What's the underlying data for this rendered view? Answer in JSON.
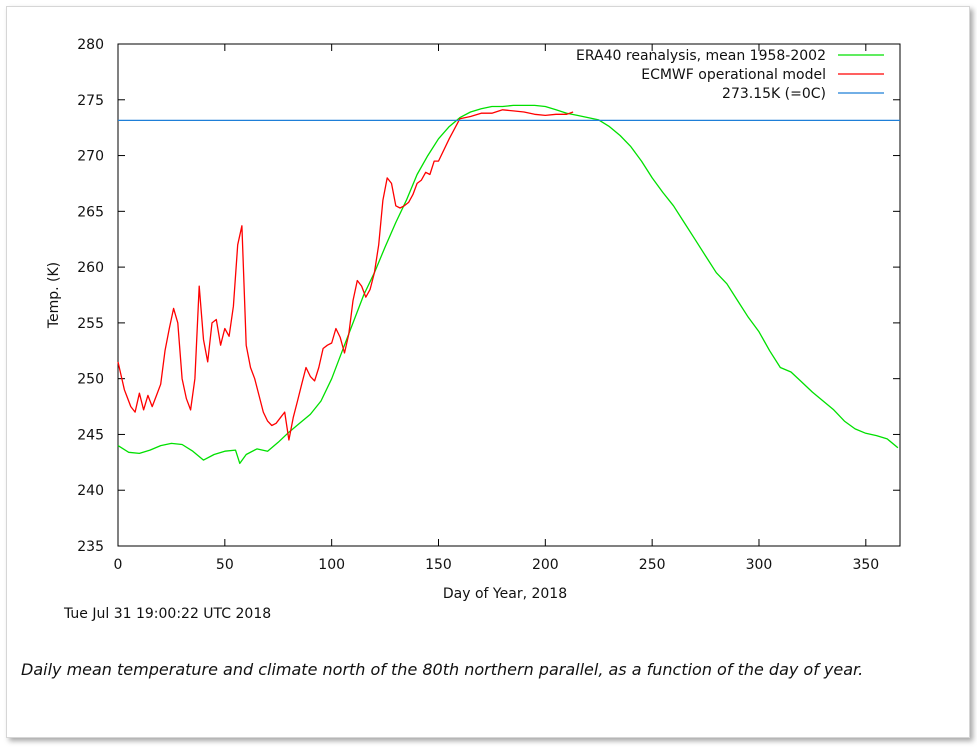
{
  "caption": "Daily mean temperature and climate north of the 80th northern parallel, as a function of the day of year.",
  "timestamp": "Tue Jul 31 19:00:22 UTC 2018",
  "chart_data": {
    "type": "line",
    "xlabel": "Day of Year, 2018",
    "ylabel": "Temp. (K)",
    "xlim": [
      0,
      366
    ],
    "ylim": [
      235,
      280
    ],
    "xticks": [
      0,
      50,
      100,
      150,
      200,
      250,
      300,
      350
    ],
    "yticks": [
      235,
      240,
      245,
      250,
      255,
      260,
      265,
      270,
      275,
      280
    ],
    "grid": false,
    "legend_position": "top-right",
    "colors": {
      "era40": "#00e000",
      "ecmwf": "#ff0000",
      "freezing": "#1e7fd8"
    },
    "series": [
      {
        "name": "ERA40 reanalysis, mean 1958-2002",
        "color": "#00e000",
        "x": [
          0,
          5,
          10,
          15,
          20,
          25,
          30,
          35,
          40,
          45,
          50,
          55,
          57,
          60,
          65,
          70,
          75,
          80,
          85,
          90,
          95,
          100,
          105,
          110,
          115,
          120,
          125,
          130,
          135,
          140,
          145,
          150,
          155,
          160,
          165,
          170,
          175,
          180,
          185,
          190,
          195,
          200,
          205,
          210,
          215,
          220,
          225,
          230,
          235,
          240,
          245,
          250,
          255,
          260,
          265,
          270,
          275,
          280,
          285,
          290,
          295,
          300,
          305,
          310,
          315,
          320,
          325,
          330,
          335,
          340,
          345,
          350,
          355,
          360,
          365
        ],
        "y": [
          244,
          243.4,
          243.3,
          243.6,
          244,
          244.2,
          244.1,
          243.5,
          242.7,
          243.2,
          243.5,
          243.6,
          242.4,
          243.2,
          243.7,
          243.5,
          244.3,
          245.2,
          246,
          246.8,
          248,
          250,
          252.5,
          255,
          257.5,
          259.5,
          261.8,
          264,
          266,
          268.3,
          270,
          271.5,
          272.6,
          273.4,
          273.9,
          274.2,
          274.4,
          274.4,
          274.5,
          274.5,
          274.5,
          274.4,
          274.1,
          273.8,
          273.6,
          273.4,
          273.2,
          272.6,
          271.8,
          270.8,
          269.5,
          268,
          266.7,
          265.5,
          264,
          262.5,
          261,
          259.5,
          258.5,
          257,
          255.5,
          254.2,
          252.5,
          251,
          250.6,
          249.7,
          248.8,
          248,
          247.2,
          246.2,
          245.5,
          245.1,
          244.9,
          244.6,
          243.8
        ]
      },
      {
        "name": "ECMWF operational model",
        "color": "#ff0000",
        "x": [
          0,
          3,
          6,
          8,
          10,
          12,
          14,
          16,
          18,
          20,
          22,
          24,
          26,
          28,
          30,
          32,
          34,
          36,
          38,
          40,
          42,
          44,
          46,
          48,
          50,
          52,
          54,
          56,
          58,
          60,
          62,
          64,
          66,
          68,
          70,
          72,
          74,
          76,
          78,
          80,
          82,
          84,
          86,
          88,
          90,
          92,
          94,
          96,
          98,
          100,
          102,
          104,
          106,
          108,
          110,
          112,
          114,
          116,
          118,
          120,
          122,
          124,
          126,
          128,
          130,
          132,
          134,
          136,
          138,
          140,
          142,
          144,
          146,
          148,
          150,
          155,
          160,
          165,
          170,
          175,
          180,
          185,
          190,
          195,
          200,
          205,
          210,
          213
        ],
        "y": [
          251.5,
          249,
          247.5,
          247,
          248.7,
          247.2,
          248.5,
          247.5,
          248.5,
          249.5,
          252.5,
          254.5,
          256.3,
          255,
          250,
          248.2,
          247.2,
          250,
          258.3,
          253.5,
          251.5,
          255,
          255.3,
          253,
          254.5,
          253.8,
          256.5,
          262,
          263.7,
          253,
          251,
          250,
          248.5,
          247,
          246.2,
          245.8,
          246,
          246.5,
          247,
          244.5,
          246.5,
          248,
          249.5,
          251,
          250.2,
          249.8,
          251,
          252.7,
          253,
          253.2,
          254.5,
          253.7,
          252.3,
          254,
          257,
          258.8,
          258.3,
          257.3,
          258,
          259.5,
          262,
          266,
          268,
          267.5,
          265.5,
          265.3,
          265.5,
          265.8,
          266.5,
          267.5,
          267.8,
          268.5,
          268.3,
          269.5,
          269.5,
          271.5,
          273.3,
          273.5,
          273.8,
          273.8,
          274.1,
          274,
          273.9,
          273.7,
          273.6,
          273.7,
          273.7,
          273.9
        ]
      },
      {
        "name": "273.15K (=0C)",
        "color": "#1e7fd8",
        "x": [
          0,
          366
        ],
        "y": [
          273.15,
          273.15
        ]
      }
    ]
  }
}
